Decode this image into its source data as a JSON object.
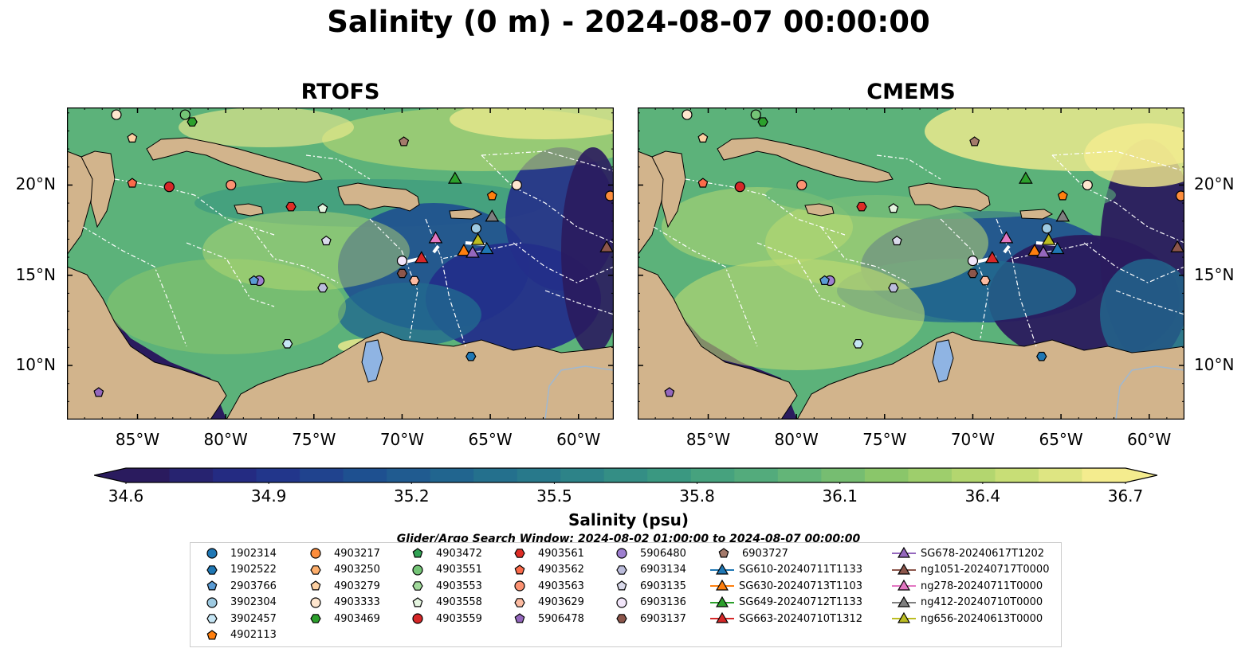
{
  "title": "Salinity (0 m) - 2024-08-07 00:00:00",
  "panels": [
    {
      "title": "RTOFS"
    },
    {
      "title": "CMEMS"
    }
  ],
  "axes": {
    "x_ticks": [
      "85°W",
      "80°W",
      "75°W",
      "70°W",
      "65°W",
      "60°W"
    ],
    "y_ticks": [
      "20°N",
      "15°N",
      "10°N"
    ],
    "lon_range": [
      -89,
      -58
    ],
    "lat_range": [
      7,
      24.3
    ]
  },
  "colorbar": {
    "label": "Salinity (psu)",
    "ticks": [
      "34.6",
      "34.9",
      "35.2",
      "35.5",
      "35.8",
      "36.1",
      "36.4",
      "36.7"
    ],
    "range": [
      34.6,
      36.7
    ],
    "colormap": [
      "#2a1b5e",
      "#232f8a",
      "#1e4f90",
      "#22698f",
      "#2b8189",
      "#3c9a80",
      "#5cb27a",
      "#8cc769",
      "#bedb71",
      "#f4ec8e"
    ]
  },
  "search_window": "Glider/Argo Search Window: 2024-08-02 01:00:00 to 2024-08-07 00:00:00",
  "colors": {
    "land": "#d2b48c",
    "ocean_deep": "#2a1b5e",
    "lake": "#8fb4e3"
  },
  "legend": {
    "floats": [
      {
        "id": "1902314",
        "marker": "circle",
        "color": "#1f77b4"
      },
      {
        "id": "1902522",
        "marker": "hexagon",
        "color": "#1f77b4"
      },
      {
        "id": "2903766",
        "marker": "pentagon",
        "color": "#5a9bd4"
      },
      {
        "id": "3902304",
        "marker": "circle",
        "color": "#9ecae1"
      },
      {
        "id": "3902457",
        "marker": "hexagon",
        "color": "#c6e6f5"
      },
      {
        "id": "4902113",
        "marker": "pentagon",
        "color": "#ff7f0e"
      },
      {
        "id": "4903217",
        "marker": "circle",
        "color": "#fd8d3c"
      },
      {
        "id": "4903250",
        "marker": "hexagon",
        "color": "#fdae6b"
      },
      {
        "id": "4903279",
        "marker": "pentagon",
        "color": "#fdd0a2"
      },
      {
        "id": "4903333",
        "marker": "circle",
        "color": "#fee6ce"
      },
      {
        "id": "4903469",
        "marker": "hexagon",
        "color": "#2ca02c"
      },
      {
        "id": "4903472",
        "marker": "pentagon",
        "color": "#31a354"
      },
      {
        "id": "4903551",
        "marker": "circle",
        "color": "#74c476"
      },
      {
        "id": "4903553",
        "marker": "hexagon",
        "color": "#a1d99b"
      },
      {
        "id": "4903558",
        "marker": "pentagon",
        "color": "#e5f5e0"
      },
      {
        "id": "4903559",
        "marker": "circle",
        "color": "#d62728"
      },
      {
        "id": "4903561",
        "marker": "hexagon",
        "color": "#de2d26"
      },
      {
        "id": "4903562",
        "marker": "pentagon",
        "color": "#fb6a4a"
      },
      {
        "id": "4903563",
        "marker": "circle",
        "color": "#fc9272"
      },
      {
        "id": "4903629",
        "marker": "hexagon",
        "color": "#fcbba1"
      },
      {
        "id": "5906478",
        "marker": "pentagon",
        "color": "#9467bd"
      },
      {
        "id": "5906480",
        "marker": "circle",
        "color": "#9e7fd0"
      },
      {
        "id": "6903134",
        "marker": "hexagon",
        "color": "#bcbddc"
      },
      {
        "id": "6903135",
        "marker": "pentagon",
        "color": "#dadaeb"
      },
      {
        "id": "6903136",
        "marker": "circle",
        "color": "#f2e6fa"
      },
      {
        "id": "6903137",
        "marker": "hexagon",
        "color": "#8c564b"
      },
      {
        "id": "6903727",
        "marker": "pentagon",
        "color": "#a47a6b"
      }
    ],
    "gliders": [
      {
        "id": "SG610-20240711T1133",
        "color": "#1f77b4"
      },
      {
        "id": "SG630-20240713T1103",
        "color": "#ff7f0e"
      },
      {
        "id": "SG649-20240712T1133",
        "color": "#2ca02c"
      },
      {
        "id": "SG663-20240710T1312",
        "color": "#d62728"
      },
      {
        "id": "SG678-20240617T1202",
        "color": "#9467bd"
      },
      {
        "id": "ng1051-20240717T0000",
        "color": "#8c564b"
      },
      {
        "id": "ng278-20240711T0000",
        "color": "#e377c2"
      },
      {
        "id": "ng412-20240710T0000",
        "color": "#7f7f7f"
      },
      {
        "id": "ng656-20240613T0000",
        "color": "#bcbd22"
      }
    ]
  }
}
